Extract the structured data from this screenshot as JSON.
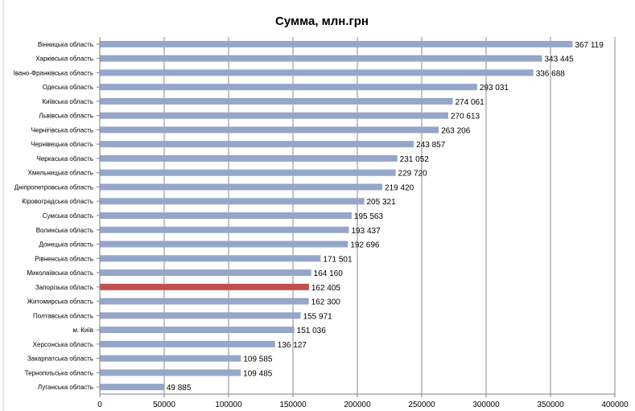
{
  "chart_data": {
    "type": "bar",
    "orientation": "horizontal",
    "title": "Сумма, млн.грн",
    "xlabel": "",
    "ylabel": "",
    "xlim": [
      0,
      400000
    ],
    "ticks": [
      0,
      50000,
      100000,
      150000,
      200000,
      250000,
      300000,
      350000,
      400000
    ],
    "tick_labels": [
      "0",
      "50000",
      "100000",
      "150000",
      "200000",
      "250000",
      "300000",
      "350000",
      "400000"
    ],
    "grid": "vertical",
    "legend": "none",
    "bar_color": "#95a6c9",
    "highlight_color": "#c0504d",
    "highlight_category": "Запорізька область",
    "categories": [
      "Вінницька область",
      "Харківська область",
      "Івано-Франківська область",
      "Одеська область",
      "Київська область",
      "Львівська область",
      "Чернігівська область",
      "Чернівецька область",
      "Черкаська область",
      "Хмельницька область",
      "Дніпропетровська область",
      "Кіровоградська область",
      "Сумська область",
      "Волинська область",
      "Донецька область",
      "Рівненська область",
      "Миколаївська область",
      "Запорізька область",
      "Житомирська область",
      "Полтавська область",
      "м. Київ",
      "Херсонська область",
      "Закарпатська область",
      "Тернопільська область",
      "Луганська область"
    ],
    "values": [
      367119,
      343445,
      336688,
      293031,
      274061,
      270613,
      263206,
      243857,
      231052,
      229720,
      219420,
      205321,
      195563,
      193437,
      192696,
      171501,
      164160,
      162405,
      162300,
      155971,
      151036,
      136127,
      109585,
      109485,
      49885
    ],
    "value_labels": [
      "367 119",
      "343 445",
      "336 688",
      "293 031",
      "274 061",
      "270 613",
      "263 206",
      "243 857",
      "231 052",
      "229 720",
      "219 420",
      "205 321",
      "195 563",
      "193 437",
      "192 696",
      "171 501",
      "164 160",
      "162 405",
      "162 300",
      "155 971",
      "151 036",
      "136 127",
      "109 585",
      "109 485",
      "49 885"
    ]
  }
}
